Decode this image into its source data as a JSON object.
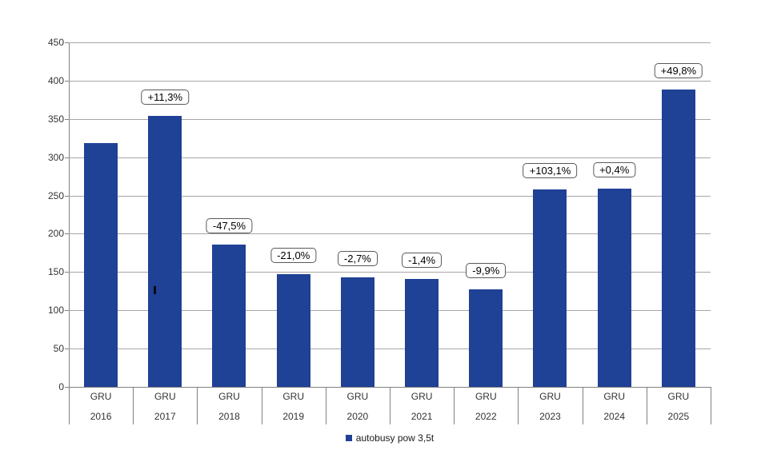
{
  "chart_data": {
    "type": "bar",
    "title": "",
    "xlabel": "",
    "ylabel": "",
    "ylim": [
      0,
      450
    ],
    "yticks": [
      0,
      50,
      100,
      150,
      200,
      250,
      300,
      350,
      400,
      450
    ],
    "grid": true,
    "legend_position": "bottom",
    "series_name": "autobusy pow 3,5t",
    "bar_color": "#1f4196",
    "categories": [
      "GRU 2016",
      "GRU 2017",
      "GRU 2018",
      "GRU 2019",
      "GRU 2020",
      "GRU 2021",
      "GRU 2022",
      "GRU 2023",
      "GRU 2024",
      "GRU 2025"
    ],
    "values": [
      318,
      354,
      186,
      147,
      143,
      141,
      127,
      258,
      259,
      388
    ],
    "bars": [
      {
        "month": "GRU",
        "year": "2016",
        "value": 318,
        "badge": null
      },
      {
        "month": "GRU",
        "year": "2017",
        "value": 354,
        "badge": "+11,3%"
      },
      {
        "month": "GRU",
        "year": "2018",
        "value": 186,
        "badge": "-47,5%"
      },
      {
        "month": "GRU",
        "year": "2019",
        "value": 147,
        "badge": "-21,0%"
      },
      {
        "month": "GRU",
        "year": "2020",
        "value": 143,
        "badge": "-2,7%"
      },
      {
        "month": "GRU",
        "year": "2021",
        "value": 141,
        "badge": "-1,4%"
      },
      {
        "month": "GRU",
        "year": "2022",
        "value": 127,
        "badge": "-9,9%"
      },
      {
        "month": "GRU",
        "year": "2023",
        "value": 258,
        "badge": "+103,1%"
      },
      {
        "month": "GRU",
        "year": "2024",
        "value": 259,
        "badge": "+0,4%"
      },
      {
        "month": "GRU",
        "year": "2025",
        "value": 388,
        "badge": "+49,8%"
      }
    ]
  },
  "legend": {
    "label": "autobusy pow 3,5t",
    "marker_color": "#1f4196"
  },
  "colors": {
    "bar": "#1f4196",
    "gridline": "#a6a6a6",
    "axis": "#808080",
    "badge_border": "#595959",
    "text": "#333333"
  }
}
